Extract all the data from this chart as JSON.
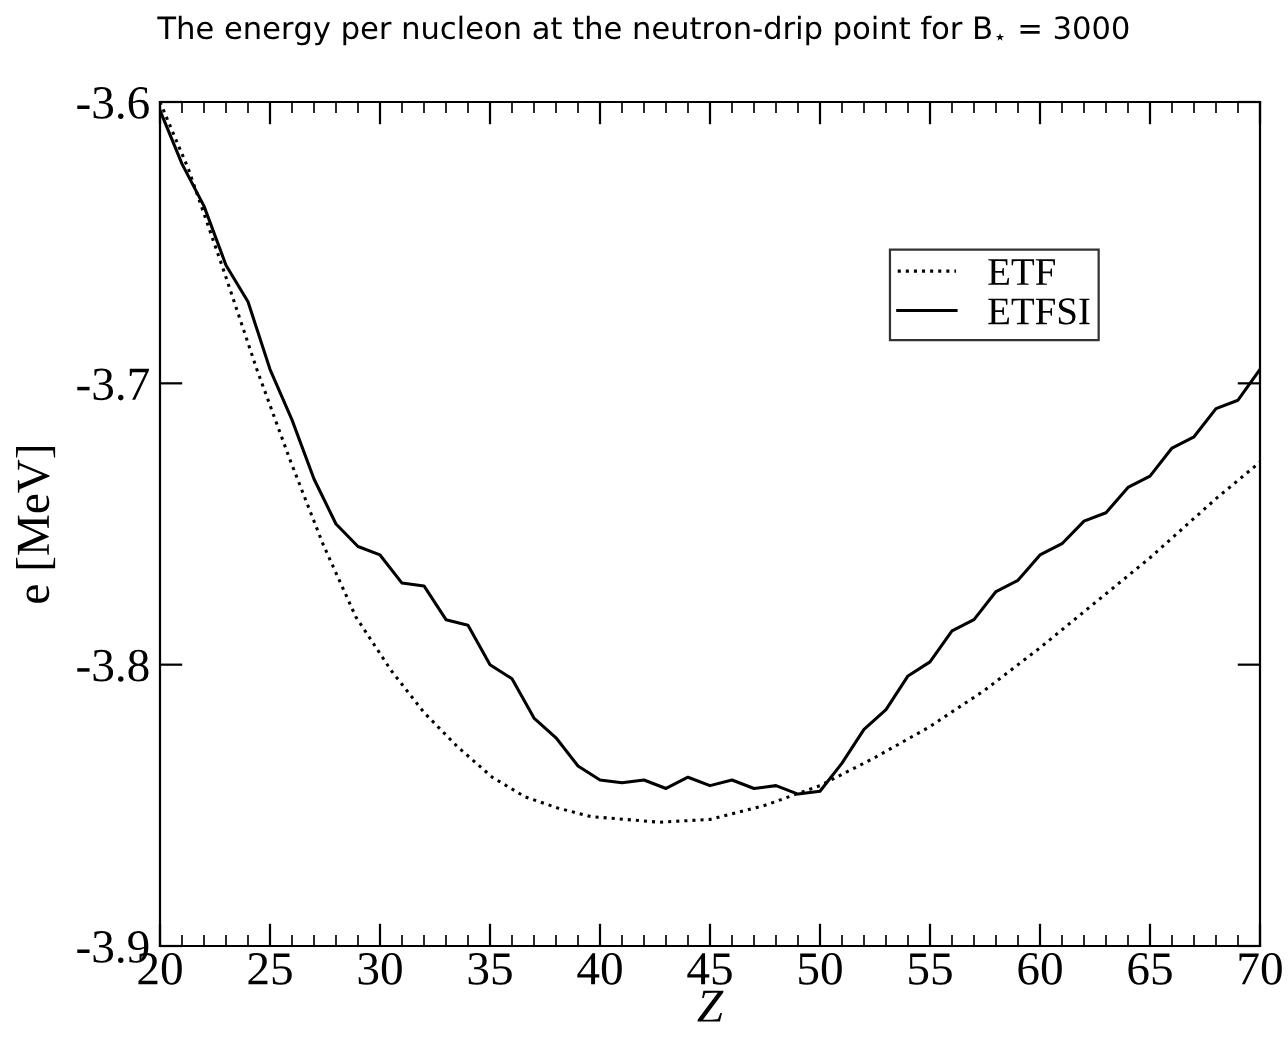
{
  "chart_data": {
    "type": "line",
    "title": "The energy per nucleon at the neutron-drip point for B$_{⋆}$ = 3000",
    "xlabel": "Z",
    "ylabel": "e [MeV]",
    "xlim": [
      20,
      70
    ],
    "xticks": [
      20,
      25,
      30,
      35,
      40,
      45,
      50,
      55,
      60,
      65,
      70
    ],
    "ylim": [
      -3.9,
      -3.6
    ],
    "yticks": [
      {
        "value": -3.9,
        "label": "-3.9"
      },
      {
        "value": -3.8,
        "label": "-3.8"
      },
      {
        "value": -3.7,
        "label": "-3.7"
      },
      {
        "value": -3.6,
        "label": "-3.6"
      }
    ],
    "grid": false,
    "legend": "top right",
    "series": [
      {
        "name": "ETF",
        "color": "#000000",
        "line_style": "dotted",
        "x": [
          20,
          21.3,
          22.9,
          24.4,
          25.9,
          27.4,
          28.9,
          30.5,
          32,
          33.5,
          35.1,
          36.6,
          38.1,
          39.6,
          42.7,
          45,
          47.5,
          50,
          52.5,
          55,
          57.5,
          60,
          62.5,
          65,
          68,
          70
        ],
        "values": [
          -3.6,
          -3.624,
          -3.66,
          -3.695,
          -3.727,
          -3.757,
          -3.783,
          -3.802,
          -3.817,
          -3.829,
          -3.84,
          -3.847,
          -3.851,
          -3.854,
          -3.856,
          -3.855,
          -3.85,
          -3.843,
          -3.833,
          -3.822,
          -3.809,
          -3.794,
          -3.778,
          -3.762,
          -3.741,
          -3.728
        ]
      },
      {
        "name": "ETFSI",
        "color": "#000000",
        "line_style": "solid",
        "x": [
          20,
          21,
          22,
          23,
          24,
          25,
          26,
          27,
          28,
          29,
          30,
          31,
          32,
          33,
          34,
          35,
          36,
          37,
          38,
          39,
          40,
          41,
          42,
          43,
          44,
          45,
          46,
          47,
          48,
          49,
          50,
          51,
          52,
          53,
          54,
          55,
          56,
          57,
          58,
          59,
          60,
          61,
          62,
          63,
          64,
          65,
          66,
          67,
          68,
          69,
          70
        ],
        "values": [
          -3.603,
          -3.622,
          -3.637,
          -3.658,
          -3.671,
          -3.695,
          -3.713,
          -3.734,
          -3.75,
          -3.758,
          -3.761,
          -3.771,
          -3.772,
          -3.784,
          -3.786,
          -3.8,
          -3.805,
          -3.819,
          -3.826,
          -3.836,
          -3.841,
          -3.842,
          -3.841,
          -3.844,
          -3.84,
          -3.843,
          -3.841,
          -3.844,
          -3.843,
          -3.846,
          -3.845,
          -3.835,
          -3.823,
          -3.816,
          -3.804,
          -3.799,
          -3.788,
          -3.784,
          -3.774,
          -3.77,
          -3.761,
          -3.757,
          -3.749,
          -3.746,
          -3.737,
          -3.733,
          -3.723,
          -3.719,
          -3.709,
          -3.706,
          -3.695
        ]
      }
    ]
  }
}
